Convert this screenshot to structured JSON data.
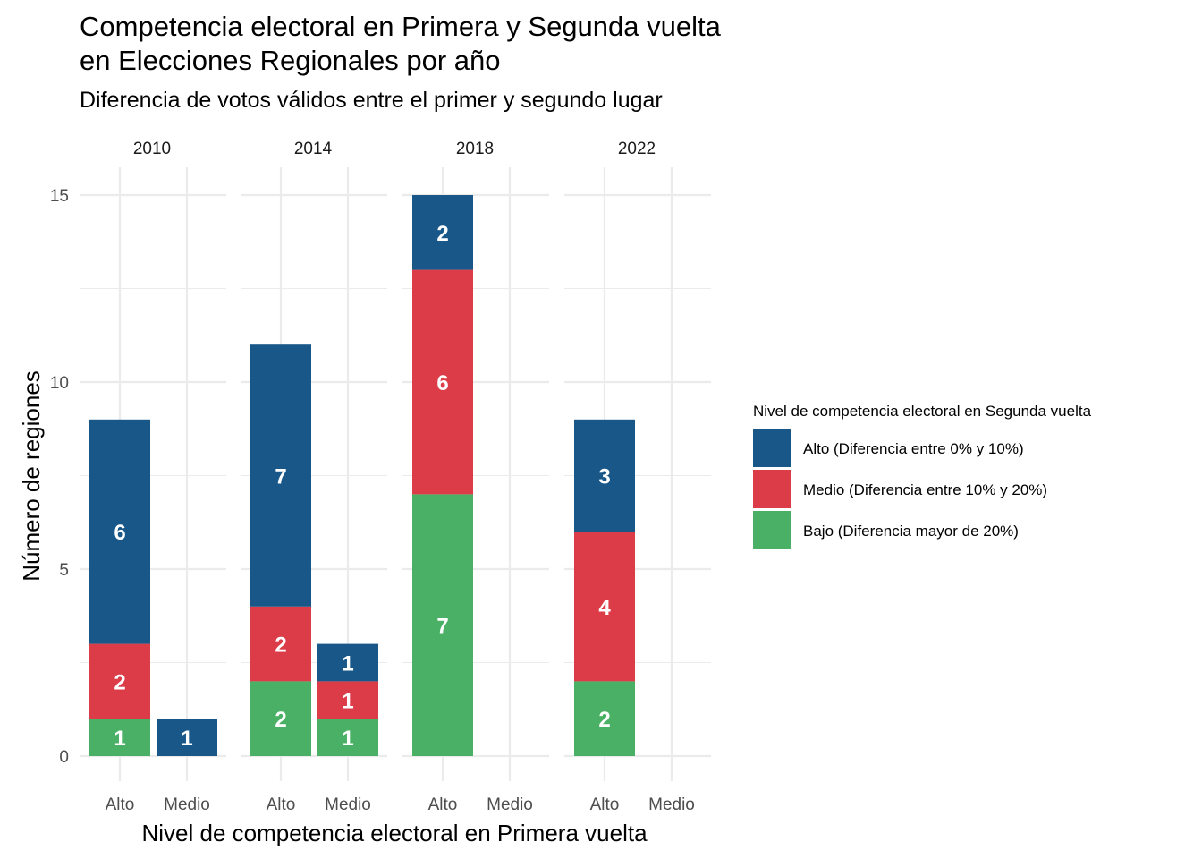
{
  "chart_data": {
    "type": "bar",
    "stacked": true,
    "faceted": true,
    "title": "Competencia electoral en Primera y Segunda vuelta\n en Elecciones Regionales por año",
    "subtitle": "Diferencia de votos válidos entre el primer y segundo lugar",
    "xlabel": "Nivel de competencia electoral en Primera vuelta",
    "ylabel": "Número de regiones",
    "ylim": [
      0,
      15.6
    ],
    "yticks": [
      0,
      5,
      10,
      15
    ],
    "categories": [
      "Alto",
      "Medio"
    ],
    "grid": true,
    "legend": {
      "title": "Nivel de competencia electoral en Segunda vuelta",
      "placement": "right",
      "entries": [
        {
          "key": "alto",
          "label": "Alto (Diferencia entre 0% y 10%)",
          "color": "#185788"
        },
        {
          "key": "medio",
          "label": "Medio (Diferencia entre 10% y 20%)",
          "color": "#dc3c48"
        },
        {
          "key": "bajo",
          "label": "Bajo (Diferencia mayor de 20%)",
          "color": "#4ab065"
        }
      ]
    },
    "stack_order": [
      "bajo",
      "medio",
      "alto"
    ],
    "facets": [
      {
        "year": "2010",
        "bars": [
          {
            "category": "Alto",
            "segments": {
              "bajo": 1,
              "medio": 2,
              "alto": 6
            }
          },
          {
            "category": "Medio",
            "segments": {
              "bajo": 0,
              "medio": 0,
              "alto": 1
            }
          }
        ]
      },
      {
        "year": "2014",
        "bars": [
          {
            "category": "Alto",
            "segments": {
              "bajo": 2,
              "medio": 2,
              "alto": 7
            }
          },
          {
            "category": "Medio",
            "segments": {
              "bajo": 1,
              "medio": 1,
              "alto": 1
            }
          }
        ]
      },
      {
        "year": "2018",
        "bars": [
          {
            "category": "Alto",
            "segments": {
              "bajo": 7,
              "medio": 6,
              "alto": 2
            }
          },
          {
            "category": "Medio",
            "segments": {
              "bajo": 0,
              "medio": 0,
              "alto": 0
            }
          }
        ]
      },
      {
        "year": "2022",
        "bars": [
          {
            "category": "Alto",
            "segments": {
              "bajo": 2,
              "medio": 4,
              "alto": 3
            }
          },
          {
            "category": "Medio",
            "segments": {
              "bajo": 0,
              "medio": 0,
              "alto": 0
            }
          }
        ]
      }
    ]
  }
}
